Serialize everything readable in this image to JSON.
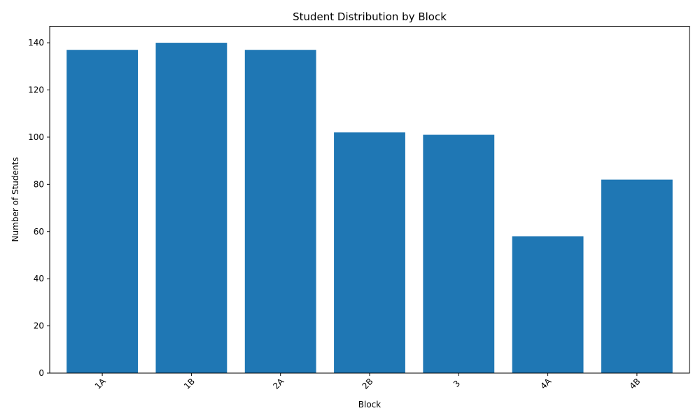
{
  "chart_data": {
    "type": "bar",
    "title": "Student Distribution by Block",
    "xlabel": "Block",
    "ylabel": "Number of Students",
    "categories": [
      "1A",
      "1B",
      "2A",
      "2B",
      "3",
      "4A",
      "4B"
    ],
    "values": [
      137,
      140,
      137,
      102,
      101,
      58,
      82
    ],
    "ylim": [
      0,
      147
    ],
    "yticks": [
      0,
      20,
      40,
      60,
      80,
      100,
      120,
      140
    ],
    "grid": false,
    "legend": "none",
    "bar_color": "#1f77b4",
    "xtick_rotation": "45 degrees"
  }
}
